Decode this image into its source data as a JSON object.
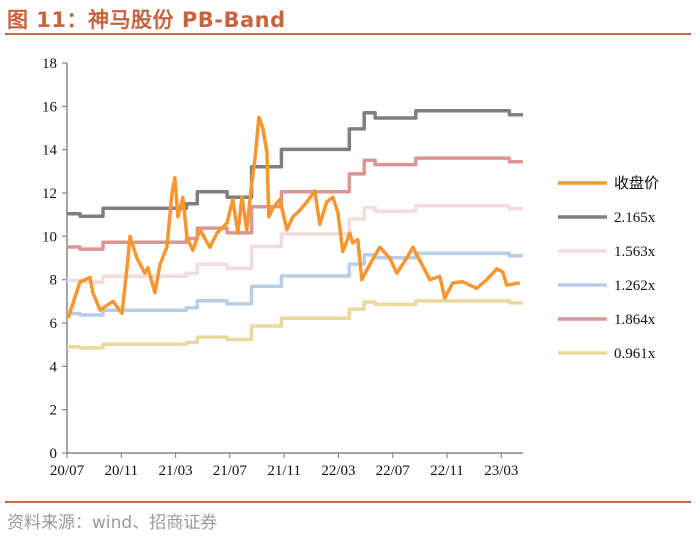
{
  "title": "图 11：神马股份 PB-Band",
  "source": "资料来源：wind、招商证券",
  "chart_data": {
    "type": "line",
    "title": "图 11：神马股份 PB-Band",
    "xlabel": "",
    "ylabel": "",
    "x_unit": "months since 2020/07",
    "xlim": [
      0,
      33.6
    ],
    "ylim": [
      0,
      18
    ],
    "yticks": [
      0,
      2,
      4,
      6,
      8,
      10,
      12,
      14,
      16,
      18
    ],
    "xticks": [
      {
        "x": 0,
        "label": "20/07"
      },
      {
        "x": 4,
        "label": "20/11"
      },
      {
        "x": 8,
        "label": "21/03"
      },
      {
        "x": 12,
        "label": "21/07"
      },
      {
        "x": 16,
        "label": "21/11"
      },
      {
        "x": 20,
        "label": "22/03"
      },
      {
        "x": 24,
        "label": "22/07"
      },
      {
        "x": 28,
        "label": "22/11"
      },
      {
        "x": 32,
        "label": "23/03"
      }
    ],
    "grid": false,
    "legend_position": "right",
    "band_steps_x": [
      0,
      0.96,
      2.65,
      8.8,
      9.6,
      11.8,
      13.6,
      15.8,
      20.8,
      21.9,
      22.7,
      25.7,
      32.6
    ],
    "series": [
      {
        "name": "收盘价",
        "color": "#F7962F",
        "kind": "line",
        "x": [
          0.07,
          0.44,
          0.96,
          1.69,
          1.91,
          2.43,
          3.39,
          4.05,
          4.42,
          4.64,
          5.15,
          5.74,
          5.96,
          6.48,
          6.85,
          7.36,
          7.73,
          7.95,
          8.17,
          8.54,
          8.84,
          9.28,
          9.79,
          10.53,
          11.05,
          11.78,
          12.22,
          12.59,
          12.89,
          13.25,
          13.62,
          13.84,
          14.14,
          14.43,
          14.73,
          14.87,
          15.17,
          15.68,
          15.91,
          16.2,
          16.64,
          17.16,
          17.75,
          18.26,
          18.63,
          19.15,
          19.59,
          19.96,
          20.32,
          20.84,
          21.06,
          21.43,
          21.72,
          22.31,
          23.05,
          23.78,
          24.3,
          25.04,
          25.48,
          25.99,
          26.73,
          27.47,
          27.84,
          28.42,
          29.16,
          30.19,
          30.93,
          31.66,
          32.11,
          32.4,
          33.36
        ],
        "values": [
          6.23,
          6.9,
          7.9,
          8.1,
          7.4,
          6.6,
          7.0,
          6.45,
          8.55,
          10.0,
          9.0,
          8.3,
          8.55,
          7.4,
          8.7,
          9.5,
          11.95,
          12.7,
          10.9,
          11.8,
          9.95,
          9.35,
          10.3,
          9.5,
          10.15,
          10.6,
          11.7,
          10.15,
          11.8,
          10.3,
          12.45,
          13.5,
          15.5,
          15.0,
          13.9,
          10.9,
          11.3,
          11.7,
          11.1,
          10.3,
          10.9,
          11.2,
          11.65,
          12.1,
          10.55,
          11.6,
          11.8,
          11.1,
          9.3,
          10.15,
          9.7,
          9.85,
          8.0,
          8.7,
          9.5,
          9.0,
          8.3,
          9.0,
          9.5,
          8.9,
          8.0,
          8.15,
          7.15,
          7.85,
          7.9,
          7.6,
          8.0,
          8.5,
          8.35,
          7.75,
          7.85
        ]
      },
      {
        "name": "2.165x",
        "color": "#7F7F7F",
        "kind": "step",
        "values": [
          11.04,
          10.93,
          11.3,
          11.5,
          12.06,
          11.8,
          13.21,
          14.01,
          14.96,
          15.7,
          15.46,
          15.8,
          15.61
        ]
      },
      {
        "name": "1.563x",
        "color": "#F2DCDB",
        "kind": "step",
        "values": [
          7.97,
          7.89,
          8.16,
          8.3,
          8.71,
          8.52,
          9.53,
          10.11,
          10.8,
          11.33,
          11.16,
          11.41,
          11.27
        ]
      },
      {
        "name": "1.262x",
        "color": "#B9CDE5",
        "kind": "step",
        "values": [
          6.44,
          6.37,
          6.59,
          6.7,
          7.03,
          6.88,
          7.7,
          8.17,
          8.72,
          9.15,
          9.01,
          9.21,
          9.1
        ]
      },
      {
        "name": "1.864x",
        "color": "#D99694",
        "kind": "step",
        "values": [
          9.51,
          9.41,
          9.73,
          9.9,
          10.38,
          10.16,
          11.37,
          12.06,
          12.88,
          13.51,
          13.31,
          13.61,
          13.44
        ]
      },
      {
        "name": "0.961x",
        "color": "#ECD79E",
        "kind": "step",
        "values": [
          4.9,
          4.85,
          5.02,
          5.1,
          5.35,
          5.24,
          5.86,
          6.22,
          6.64,
          6.97,
          6.86,
          7.02,
          6.93
        ]
      }
    ]
  }
}
